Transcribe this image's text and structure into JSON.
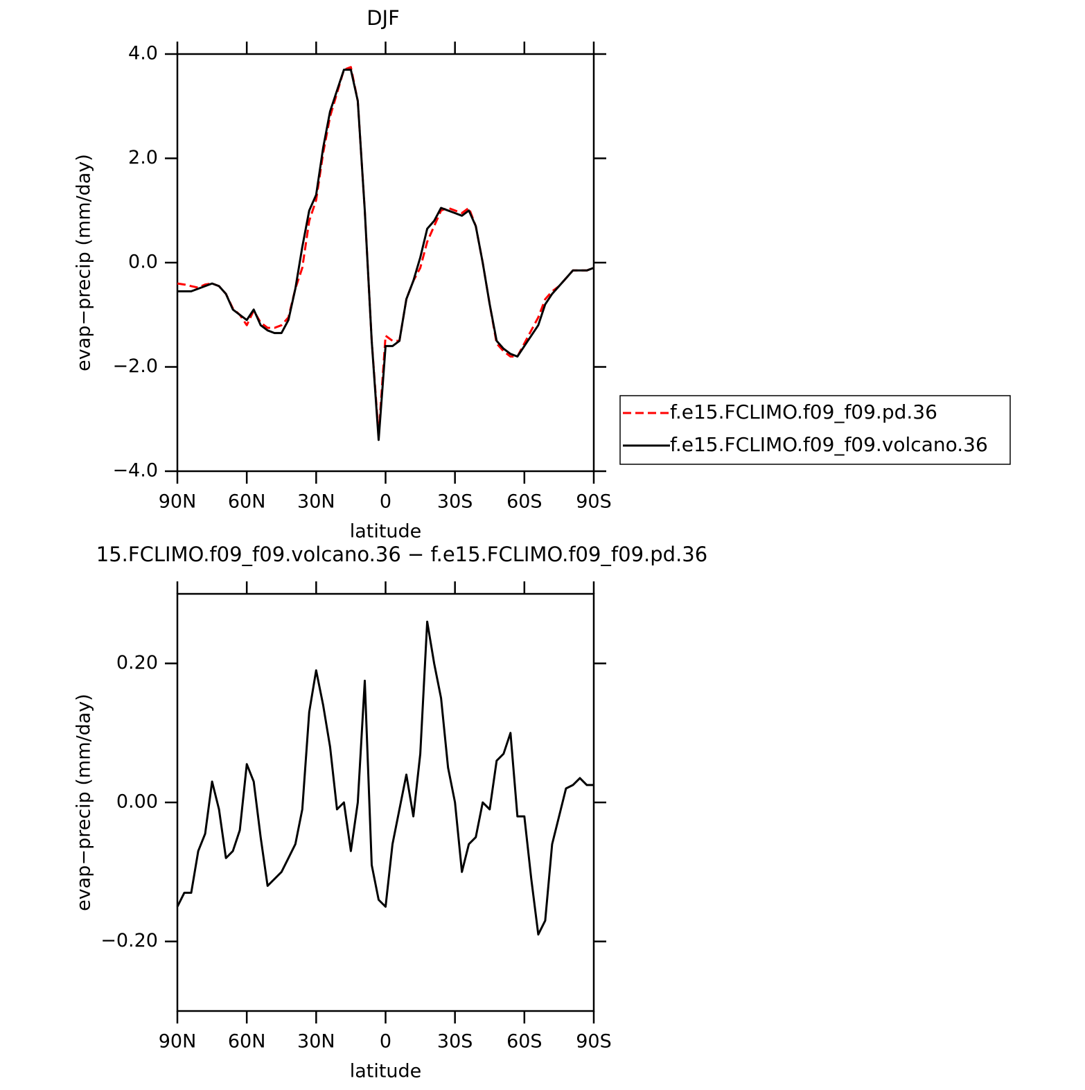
{
  "chart_data": [
    {
      "type": "line",
      "title": "DJF",
      "xlabel": "latitude",
      "ylabel": "evap−precip (mm/day)",
      "x": [
        90,
        87,
        84,
        81,
        78,
        75,
        72,
        69,
        66,
        63,
        60,
        57,
        54,
        51,
        48,
        45,
        42,
        39,
        36,
        33,
        30,
        27,
        24,
        21,
        18,
        15,
        12,
        9,
        6,
        3,
        0,
        -3,
        -6,
        -9,
        -12,
        -15,
        -18,
        -21,
        -24,
        -27,
        -30,
        -33,
        -36,
        -39,
        -42,
        -45,
        -48,
        -51,
        -54,
        -57,
        -60,
        -63,
        -66,
        -69,
        -72,
        -75,
        -78,
        -81,
        -84,
        -87,
        -90
      ],
      "xlim": [
        90,
        -90
      ],
      "xticks": [
        {
          "value": 90,
          "label": "90N"
        },
        {
          "value": 60,
          "label": "60N"
        },
        {
          "value": 30,
          "label": "30N"
        },
        0,
        {
          "value": -30,
          "label": "30S"
        },
        {
          "value": -60,
          "label": "60S"
        },
        {
          "value": -90,
          "label": "90S"
        }
      ],
      "ylim": [
        -4,
        4
      ],
      "yticks": [
        {
          "value": -4,
          "label": "−4.0"
        },
        {
          "value": -2,
          "label": "−2.0"
        },
        {
          "value": 0,
          "label": "0.0"
        },
        {
          "value": 2,
          "label": "2.0"
        },
        {
          "value": 4,
          "label": "4.0"
        }
      ],
      "legend": "right",
      "series": [
        {
          "name": "f.e15.FCLIMO.f09_f09.pd.36",
          "color": "#ff0000",
          "dash": true,
          "values": [
            -0.4,
            -0.42,
            -0.45,
            -0.48,
            -0.42,
            -0.4,
            -0.45,
            -0.6,
            -0.88,
            -1.0,
            -1.2,
            -0.92,
            -1.15,
            -1.25,
            -1.25,
            -1.2,
            -1.05,
            -0.5,
            -0.1,
            0.8,
            1.2,
            2.1,
            2.8,
            3.25,
            3.7,
            3.75,
            3.1,
            1.0,
            -1.5,
            -3.3,
            -1.4,
            -1.5,
            -1.5,
            -0.7,
            -0.35,
            -0.1,
            0.4,
            0.7,
            1.0,
            1.05,
            1.0,
            0.95,
            1.05,
            0.7,
            0.0,
            -0.8,
            -1.55,
            -1.7,
            -1.8,
            -1.8,
            -1.55,
            -1.3,
            -1.05,
            -0.7,
            -0.55,
            -0.45,
            -0.3,
            -0.15,
            -0.15,
            -0.15,
            -0.1
          ]
        },
        {
          "name": "f.e15.FCLIMO.f09_f09.volcano.36",
          "color": "#000000",
          "dash": false,
          "values": [
            -0.55,
            -0.55,
            -0.55,
            -0.5,
            -0.45,
            -0.4,
            -0.45,
            -0.6,
            -0.9,
            -1.0,
            -1.1,
            -0.9,
            -1.2,
            -1.3,
            -1.35,
            -1.35,
            -1.1,
            -0.5,
            0.3,
            1.0,
            1.3,
            2.2,
            2.9,
            3.3,
            3.7,
            3.7,
            3.1,
            1.0,
            -1.5,
            -3.4,
            -1.6,
            -1.6,
            -1.5,
            -0.7,
            -0.35,
            0.1,
            0.65,
            0.8,
            1.05,
            1.0,
            0.95,
            0.9,
            1.0,
            0.7,
            0.0,
            -0.8,
            -1.5,
            -1.65,
            -1.75,
            -1.8,
            -1.6,
            -1.4,
            -1.2,
            -0.8,
            -0.6,
            -0.45,
            -0.3,
            -0.15,
            -0.15,
            -0.15,
            -0.1
          ]
        }
      ]
    },
    {
      "type": "line",
      "title": "15.FCLIMO.f09_f09.volcano.36 − f.e15.FCLIMO.f09_f09.pd.36",
      "xlabel": "latitude",
      "ylabel": "evap−precip (mm/day)",
      "x": [
        90,
        87,
        84,
        81,
        78,
        75,
        72,
        69,
        66,
        63,
        60,
        57,
        54,
        51,
        48,
        45,
        42,
        39,
        36,
        33,
        30,
        27,
        24,
        21,
        18,
        15,
        12,
        9,
        6,
        3,
        0,
        -3,
        -6,
        -9,
        -12,
        -15,
        -18,
        -21,
        -24,
        -27,
        -30,
        -33,
        -36,
        -39,
        -42,
        -45,
        -48,
        -51,
        -54,
        -57,
        -60,
        -63,
        -66,
        -69,
        -72,
        -75,
        -78,
        -81,
        -84,
        -87,
        -90
      ],
      "xlim": [
        90,
        -90
      ],
      "xticks": [
        {
          "value": 90,
          "label": "90N"
        },
        {
          "value": 60,
          "label": "60N"
        },
        {
          "value": 30,
          "label": "30N"
        },
        0,
        {
          "value": -30,
          "label": "30S"
        },
        {
          "value": -60,
          "label": "60S"
        },
        {
          "value": -90,
          "label": "90S"
        }
      ],
      "ylim": [
        -0.3,
        0.3
      ],
      "yticks": [
        {
          "value": -0.2,
          "label": "−0.20"
        },
        {
          "value": 0,
          "label": "0.00"
        },
        {
          "value": 0.2,
          "label": "0.20"
        }
      ],
      "series": [
        {
          "color": "#000000",
          "dash": false,
          "values": [
            -0.15,
            -0.13,
            -0.13,
            -0.07,
            -0.045,
            0.03,
            -0.01,
            -0.08,
            -0.07,
            -0.04,
            0.055,
            0.03,
            -0.05,
            -0.12,
            -0.11,
            -0.1,
            -0.08,
            -0.06,
            -0.01,
            0.13,
            0.19,
            0.14,
            0.08,
            -0.01,
            0.0,
            -0.07,
            0.0,
            0.175,
            -0.09,
            -0.14,
            -0.15,
            -0.06,
            -0.01,
            0.04,
            -0.02,
            0.07,
            0.26,
            0.2,
            0.15,
            0.05,
            0.0,
            -0.1,
            -0.06,
            -0.05,
            0.0,
            -0.01,
            0.06,
            0.07,
            0.1,
            -0.02,
            -0.02,
            -0.11,
            -0.19,
            -0.17,
            -0.06,
            -0.02,
            0.02,
            0.025,
            0.035,
            0.025,
            0.025
          ]
        }
      ]
    }
  ]
}
